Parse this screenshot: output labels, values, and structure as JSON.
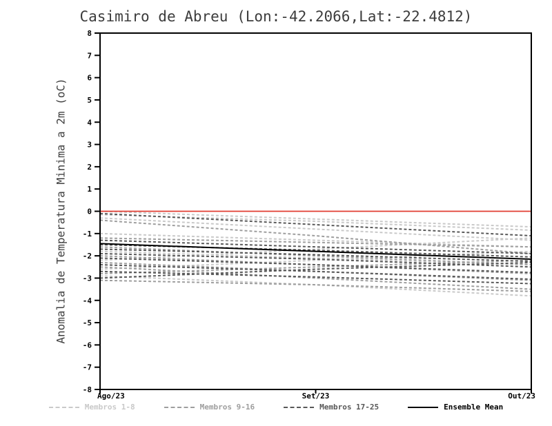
{
  "chart_data": {
    "type": "line",
    "title": "Casimiro de Abreu (Lon:-42.2066,Lat:-22.4812)",
    "ylabel": "Anomalia de Temperatura Minima a 2m (oC)",
    "xlabel": "",
    "ylim": [
      -8,
      8
    ],
    "yticks": [
      -8,
      -7,
      -6,
      -5,
      -4,
      -3,
      -2,
      -1,
      0,
      1,
      2,
      3,
      4,
      5,
      6,
      7,
      8
    ],
    "x_categories": [
      "Ago/23",
      "Set/23",
      "Out/23"
    ],
    "grid": false,
    "legend_position": "bottom",
    "zero_line": {
      "value": 0,
      "color": "#e03c31"
    },
    "groups": [
      {
        "name": "Membros 1-8",
        "color": "#c9c9c9",
        "style": "dashed",
        "members": [
          [
            0.0,
            -0.35,
            -0.7
          ],
          [
            -0.15,
            -0.45,
            -0.85
          ],
          [
            -0.3,
            -0.8,
            -1.3
          ],
          [
            -1.0,
            -1.3,
            -1.6
          ],
          [
            -1.8,
            -2.1,
            -2.4
          ],
          [
            -2.2,
            -1.7,
            -1.2
          ],
          [
            -2.6,
            -2.2,
            -1.8
          ],
          [
            -2.9,
            -3.3,
            -3.8
          ]
        ]
      },
      {
        "name": "Membros 9-16",
        "color": "#9e9e9e",
        "style": "dashed",
        "members": [
          [
            -0.4,
            -1.1,
            -1.9
          ],
          [
            -1.2,
            -1.4,
            -1.6
          ],
          [
            -1.6,
            -2.0,
            -2.4
          ],
          [
            -2.0,
            -2.4,
            -2.8
          ],
          [
            -2.3,
            -2.7,
            -3.1
          ],
          [
            -2.5,
            -3.0,
            -3.5
          ],
          [
            -2.8,
            -2.5,
            -2.2
          ],
          [
            -3.1,
            -3.3,
            -3.6
          ]
        ]
      },
      {
        "name": "Membros 17-25",
        "color": "#585858",
        "style": "dashed",
        "members": [
          [
            -0.1,
            -0.6,
            -1.1
          ],
          [
            -1.3,
            -1.6,
            -1.9
          ],
          [
            -1.5,
            -1.75,
            -2.05
          ],
          [
            -1.7,
            -1.95,
            -2.25
          ],
          [
            -1.9,
            -2.15,
            -2.5
          ],
          [
            -2.1,
            -2.4,
            -2.75
          ],
          [
            -2.4,
            -2.7,
            -3.05
          ],
          [
            -2.7,
            -2.95,
            -3.25
          ],
          [
            -3.0,
            -2.6,
            -2.3
          ]
        ]
      }
    ],
    "ensemble_mean": {
      "name": "Ensemble Mean",
      "color": "#000000",
      "style": "solid",
      "values": [
        -1.45,
        -1.8,
        -2.15
      ]
    }
  }
}
